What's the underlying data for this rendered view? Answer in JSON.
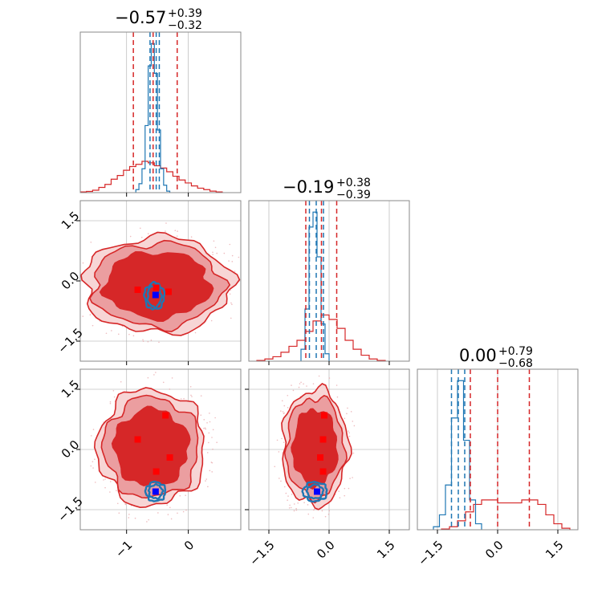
{
  "figure": {
    "colors": {
      "red": "#d62728",
      "red_mid": "#eb9ea0",
      "red_light": "#f7d5d5",
      "blue": "#1f77b4",
      "marker_blue": "#0000ff",
      "marker_red": "#ff0000"
    }
  },
  "chart_data": {
    "type": "corner",
    "parameters": 3,
    "titles": [
      {
        "median": "−0.57",
        "plus": "+0.39",
        "minus": "−0.32"
      },
      {
        "median": "−0.19",
        "plus": "+0.38",
        "minus": "−0.39"
      },
      {
        "median": "0.00",
        "plus": "+0.79",
        "minus": "−0.68"
      }
    ],
    "ranges": [
      [
        -1.75,
        0.85
      ],
      [
        -2.0,
        2.0
      ],
      [
        -2.0,
        2.0
      ]
    ],
    "ticks": {
      "p0": {
        "values": [
          -1,
          0
        ],
        "labels": [
          "−1",
          "0"
        ]
      },
      "p1": {
        "values": [
          -1.5,
          0.0,
          1.5
        ],
        "labels": [
          "−1.5",
          "0.0",
          "1.5"
        ]
      },
      "p2": {
        "values": [
          -1.5,
          0.0,
          1.5
        ],
        "labels": [
          "−1.5",
          "0.0",
          "1.5"
        ]
      }
    },
    "histograms_1d": [
      {
        "parameter": 0,
        "red_quantiles": [
          -0.89,
          -0.57,
          -0.18
        ],
        "blue_quantiles": [
          -0.62,
          -0.52,
          -0.47
        ],
        "red_hist": {
          "edges": [
            -1.75,
            -1.65,
            -1.55,
            -1.45,
            -1.35,
            -1.25,
            -1.15,
            -1.05,
            -0.95,
            -0.85,
            -0.75,
            -0.65,
            -0.55,
            -0.45,
            -0.35,
            -0.25,
            -0.15,
            -0.05,
            0.05,
            0.15,
            0.25,
            0.35,
            0.45,
            0.55
          ],
          "heights": [
            0.005,
            0.008,
            0.016,
            0.035,
            0.055,
            0.09,
            0.115,
            0.15,
            0.175,
            0.19,
            0.21,
            0.2,
            0.18,
            0.165,
            0.14,
            0.11,
            0.085,
            0.065,
            0.045,
            0.03,
            0.02,
            0.01,
            0.005
          ]
        },
        "blue_hist": {
          "edges": [
            -0.85,
            -0.8,
            -0.75,
            -0.7,
            -0.65,
            -0.6,
            -0.55,
            -0.5,
            -0.45,
            -0.4,
            -0.35,
            -0.3
          ],
          "heights": [
            0.02,
            0.06,
            0.16,
            0.45,
            0.85,
            1.0,
            0.8,
            0.42,
            0.16,
            0.05,
            0.01
          ]
        }
      },
      {
        "parameter": 1,
        "red_quantiles": [
          -0.58,
          -0.19,
          0.19
        ],
        "blue_quantiles": [
          -0.49,
          -0.32,
          -0.14
        ],
        "red_hist": {
          "edges": [
            -1.8,
            -1.6,
            -1.4,
            -1.2,
            -1.0,
            -0.8,
            -0.6,
            -0.4,
            -0.2,
            0.0,
            0.2,
            0.4,
            0.6,
            0.8,
            1.0,
            1.2,
            1.4
          ],
          "heights": [
            0.005,
            0.015,
            0.03,
            0.06,
            0.1,
            0.14,
            0.2,
            0.27,
            0.31,
            0.28,
            0.22,
            0.14,
            0.08,
            0.04,
            0.015,
            0.005
          ]
        },
        "blue_hist": {
          "edges": [
            -0.7,
            -0.6,
            -0.5,
            -0.4,
            -0.3,
            -0.2,
            -0.1,
            0.0
          ],
          "heights": [
            0.08,
            0.35,
            0.9,
            1.0,
            0.7,
            0.25,
            0.05
          ]
        }
      },
      {
        "parameter": 2,
        "red_quantiles": [
          -0.68,
          0.0,
          0.79
        ],
        "blue_quantiles": [
          -1.15,
          -0.98,
          -0.82
        ],
        "red_hist": {
          "edges": [
            -1.4,
            -1.2,
            -1.0,
            -0.8,
            -0.6,
            -0.4,
            -0.2,
            0.0,
            0.2,
            0.4,
            0.6,
            0.8,
            1.0,
            1.2,
            1.4,
            1.6,
            1.8
          ],
          "heights": [
            0.005,
            0.02,
            0.06,
            0.12,
            0.17,
            0.2,
            0.2,
            0.18,
            0.18,
            0.18,
            0.2,
            0.2,
            0.17,
            0.1,
            0.04,
            0.01
          ]
        },
        "blue_hist": {
          "edges": [
            -1.6,
            -1.45,
            -1.3,
            -1.15,
            -1.0,
            -0.85,
            -0.7,
            -0.55,
            -0.4
          ],
          "heights": [
            0.02,
            0.1,
            0.3,
            0.75,
            1.0,
            0.6,
            0.2,
            0.04
          ]
        }
      }
    ],
    "panels_2d": [
      {
        "x_param": 0,
        "y_param": 1,
        "red_center": [
          -0.5,
          -0.1
        ],
        "red_contours": [
          [
            0.85,
            0.82
          ],
          [
            1.05,
            1.05
          ],
          [
            1.2,
            1.2
          ]
        ],
        "blue_center": [
          -0.55,
          -0.38
        ],
        "blue_contours": [
          [
            0.11,
            0.27
          ],
          [
            0.16,
            0.33
          ]
        ],
        "red_markers": [
          [
            -0.82,
            -0.22
          ],
          [
            -0.52,
            -0.17
          ],
          [
            -0.32,
            -0.27
          ]
        ],
        "blue_marker": [
          -0.53,
          -0.35
        ]
      },
      {
        "x_param": 0,
        "y_param": 2,
        "red_center": [
          -0.6,
          0.05
        ],
        "red_contours": [
          [
            0.6,
            0.95
          ],
          [
            0.77,
            1.25
          ],
          [
            0.87,
            1.45
          ]
        ],
        "blue_center": [
          -0.53,
          -1.05
        ],
        "blue_contours": [
          [
            0.11,
            0.17
          ],
          [
            0.16,
            0.24
          ]
        ],
        "red_markers": [
          [
            -0.82,
            0.25
          ],
          [
            -0.37,
            0.85
          ],
          [
            -0.3,
            -0.2
          ],
          [
            -0.52,
            -0.55
          ]
        ],
        "blue_marker": [
          -0.53,
          -1.05
        ]
      },
      {
        "x_param": 1,
        "y_param": 2,
        "red_center": [
          -0.35,
          0.05
        ],
        "red_contours": [
          [
            0.55,
            0.95
          ],
          [
            0.72,
            1.25
          ],
          [
            0.82,
            1.45
          ]
        ],
        "blue_center": [
          -0.35,
          -1.05
        ],
        "blue_contours": [
          [
            0.2,
            0.17
          ],
          [
            0.3,
            0.24
          ]
        ],
        "red_markers": [
          [
            -0.12,
            0.85
          ],
          [
            -0.15,
            0.25
          ],
          [
            -0.22,
            -0.2
          ],
          [
            -0.15,
            -0.55
          ]
        ],
        "blue_marker": [
          -0.3,
          -1.05
        ]
      }
    ]
  }
}
